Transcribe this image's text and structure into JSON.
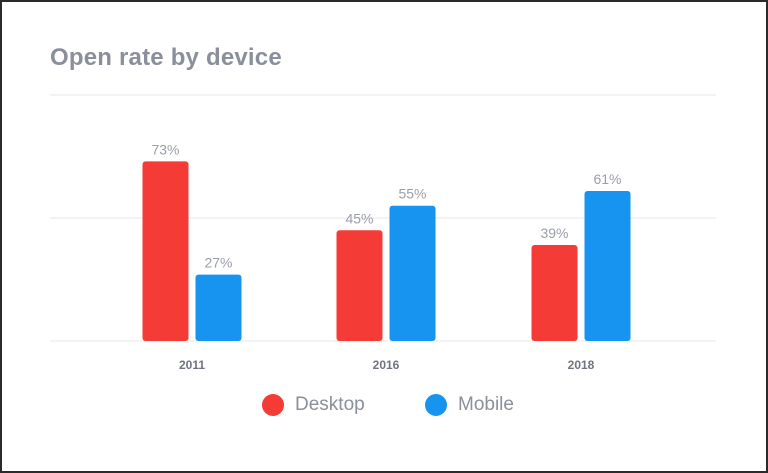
{
  "chart_data": {
    "type": "bar",
    "title": "Open rate by device",
    "categories": [
      "2011",
      "2016",
      "2018"
    ],
    "series": [
      {
        "name": "Desktop",
        "color": "#f53b36",
        "values": [
          73,
          45,
          39
        ]
      },
      {
        "name": "Mobile",
        "color": "#1793f0",
        "values": [
          27,
          55,
          61
        ]
      }
    ],
    "data_labels": [
      [
        "73%",
        "45%",
        "39%"
      ],
      [
        "27%",
        "55%",
        "61%"
      ]
    ],
    "xlabel": "",
    "ylabel": "",
    "ylim": [
      0,
      100
    ],
    "gridlines": [
      0,
      50,
      100
    ],
    "grid": true,
    "legend": "bottom-center"
  }
}
